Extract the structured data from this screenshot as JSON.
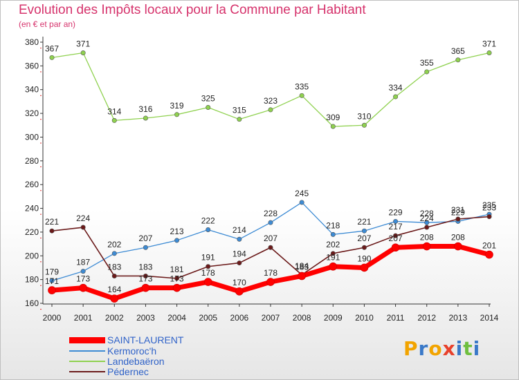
{
  "header": {
    "title": "Evolution des Impôts locaux pour la Commune par Habitant",
    "subtitle": "(en € et par an)"
  },
  "logo": {
    "letters": [
      "P",
      "r",
      "o",
      "x",
      "i",
      "t",
      "i"
    ]
  },
  "colors": {
    "title": "#d6336c",
    "legend_text": "#2f62c8",
    "logo_letters": [
      "#f2a400",
      "#3a79c8",
      "#f2a400",
      "#e8412c",
      "#3a79c8",
      "#6fbf3f",
      "#3a79c8"
    ]
  },
  "chart_data": {
    "type": "line",
    "x": [
      "2000",
      "2001",
      "2002",
      "2003",
      "2004",
      "2005",
      "2006",
      "2007",
      "2008",
      "2009",
      "2010",
      "2011",
      "2012",
      "2013",
      "2014"
    ],
    "ylim": [
      160,
      380
    ],
    "yticks": [
      160,
      180,
      200,
      220,
      240,
      260,
      280,
      300,
      320,
      340,
      360,
      380
    ],
    "grid": false,
    "legend_position": "bottom-left",
    "series": [
      {
        "name": "SAINT-LAURENT",
        "color": "#ff0000",
        "values": [
          171,
          173,
          164,
          173,
          173,
          178,
          170,
          178,
          183,
          191,
          190,
          207,
          208,
          208,
          201
        ],
        "labels": [
          "171",
          "173",
          "164",
          "173",
          "173",
          "178",
          "170",
          "178",
          "183",
          "191",
          "190",
          "207",
          "208",
          "208",
          "201"
        ]
      },
      {
        "name": "Kermoroc'h",
        "color": "#3d8bd4",
        "values": [
          179,
          187,
          202,
          207,
          213,
          222,
          214,
          228,
          245,
          218,
          221,
          229,
          228,
          229,
          235
        ],
        "labels": [
          "179",
          "187",
          "202",
          "207",
          "213",
          "222",
          "214",
          "228",
          "245",
          "218",
          "221",
          "229",
          "228",
          "229",
          "235"
        ]
      },
      {
        "name": "Landebaëron",
        "color": "#8fd14f",
        "values": [
          367,
          371,
          314,
          316,
          319,
          325,
          315,
          323,
          335,
          309,
          310,
          334,
          355,
          365,
          371
        ],
        "labels": [
          "367",
          "371",
          "314",
          "316",
          "319",
          "325",
          "315",
          "323",
          "335",
          "309",
          "310",
          "334",
          "355",
          "365",
          "371"
        ]
      },
      {
        "name": "Pédernec",
        "color": "#6b1a1a",
        "values": [
          221,
          224,
          183,
          183,
          181,
          191,
          194,
          207,
          184,
          202,
          207,
          217,
          224,
          231,
          233
        ],
        "labels": [
          "221",
          "224",
          "183",
          "183",
          "181",
          "191",
          "194",
          "207",
          "184",
          "202",
          "207",
          "217",
          "224",
          "231",
          "233"
        ]
      }
    ]
  }
}
